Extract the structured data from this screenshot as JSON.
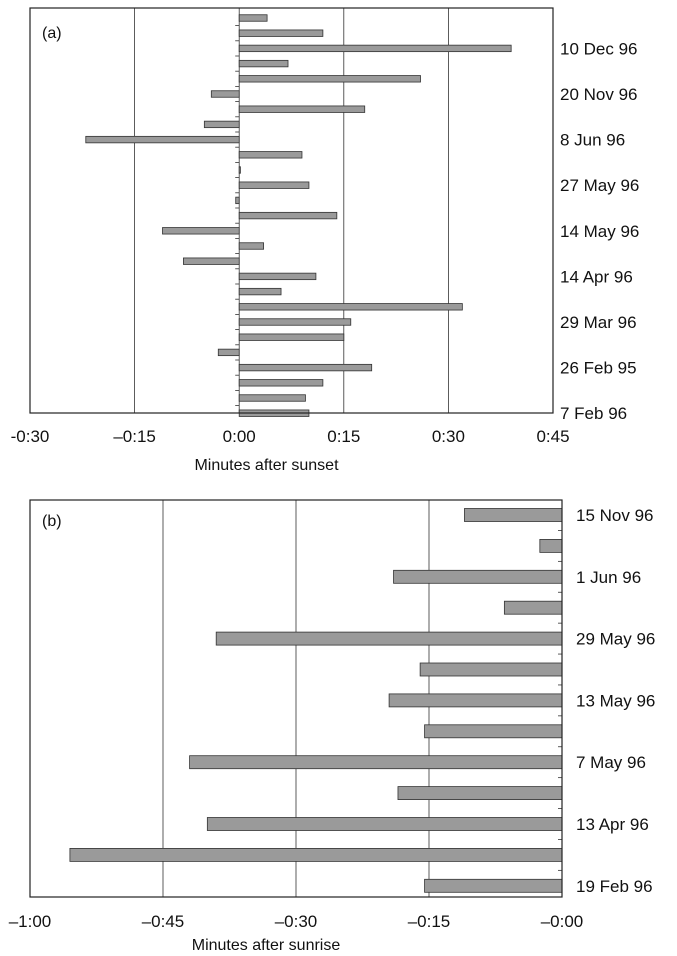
{
  "chart_data": [
    {
      "type": "bar",
      "orientation": "horizontal",
      "panel_label": "(a)",
      "xlabel": "Minutes after sunset",
      "ylabel": "",
      "xlim": [
        -30,
        45
      ],
      "x_ticks": [
        -30,
        -15,
        0,
        15,
        30,
        45
      ],
      "x_tick_labels": [
        "-0:30",
        "–0:15",
        "0:00",
        "0:15",
        "0:30",
        "0:45"
      ],
      "grid": "vertical lines at ticks",
      "date_labels": [
        {
          "label": "10 Dec 96",
          "row": 2
        },
        {
          "label": "20 Nov 96",
          "row": 5
        },
        {
          "label": "8 Jun 96",
          "row": 8
        },
        {
          "label": "27 May 96",
          "row": 11
        },
        {
          "label": "14 May 96",
          "row": 14
        },
        {
          "label": "14 Apr 96",
          "row": 17
        },
        {
          "label": "29 Mar 96",
          "row": 20
        },
        {
          "label": "26 Feb 95",
          "row": 23
        },
        {
          "label": "7 Feb 96",
          "row": 26
        }
      ],
      "values": [
        4,
        12,
        39,
        7,
        26,
        -4,
        18,
        -5,
        -22,
        9,
        0,
        10,
        -0.5,
        14,
        -11,
        3.5,
        -8,
        11,
        6,
        32,
        16,
        15,
        -3,
        19,
        12,
        9.5,
        10
      ]
    },
    {
      "type": "bar",
      "orientation": "horizontal",
      "panel_label": "(b)",
      "xlabel": "Minutes after sunrise",
      "ylabel": "",
      "xlim": [
        -60,
        0
      ],
      "x_ticks": [
        -60,
        -45,
        -30,
        -15,
        0
      ],
      "x_tick_labels": [
        "–1:00",
        "–0:45",
        "–0:30",
        "–0:15",
        "–0:00"
      ],
      "grid": "vertical lines at ticks",
      "date_labels": [
        {
          "label": "15 Nov 96",
          "row": 0
        },
        {
          "label": "1 Jun 96",
          "row": 2
        },
        {
          "label": "29 May 96",
          "row": 4
        },
        {
          "label": "13 May 96",
          "row": 6
        },
        {
          "label": "7 May 96",
          "row": 8
        },
        {
          "label": "13 Apr 96",
          "row": 10
        },
        {
          "label": "19 Feb 96",
          "row": 12
        }
      ],
      "values": [
        -11,
        -2.5,
        -19,
        -6.5,
        -39,
        -16,
        -19.5,
        -15.5,
        -42,
        -18.5,
        -40,
        -55.5,
        -15.5
      ]
    }
  ]
}
